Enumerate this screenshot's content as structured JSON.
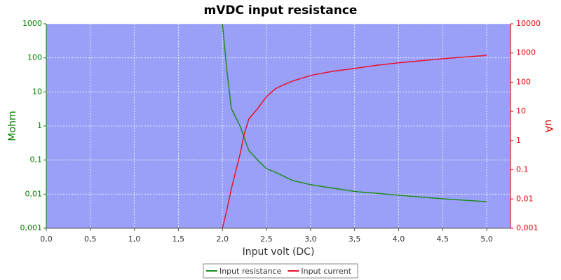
{
  "chart_data": {
    "type": "line",
    "title": "mVDC input resistance",
    "xlabel": "Input volt (DC)",
    "ylabel": "Mohm",
    "y2label": "uA",
    "x": [
      2.0,
      2.05,
      2.1,
      2.2,
      2.25,
      2.3,
      2.4,
      2.5,
      2.6,
      2.7,
      2.8,
      3.0,
      3.25,
      3.5,
      3.75,
      4.0,
      4.5,
      5.0
    ],
    "series": [
      {
        "name": "Input resistance",
        "color": "#1e8c1e",
        "axis": "y",
        "values": [
          1000,
          44,
          3.3,
          1.0,
          0.43,
          0.19,
          0.1,
          0.056,
          0.044,
          0.033,
          0.025,
          0.019,
          0.015,
          0.012,
          0.0106,
          0.0093,
          0.0073,
          0.006
        ]
      },
      {
        "name": "Input current",
        "color": "#e8102a",
        "axis": "y2",
        "values": [
          0.001,
          0.0042,
          0.022,
          0.35,
          1.8,
          5.5,
          12.6,
          32,
          60,
          83,
          110,
          170,
          235,
          295,
          380,
          460,
          635,
          830
        ]
      }
    ],
    "xlim": [
      0,
      5.27
    ],
    "xticks": [
      {
        "value": 0,
        "label": "0,0"
      },
      {
        "value": 0.5,
        "label": "0,5"
      },
      {
        "value": 1,
        "label": "1,0"
      },
      {
        "value": 1.5,
        "label": "1,5"
      },
      {
        "value": 2,
        "label": "2,0"
      },
      {
        "value": 2.5,
        "label": "2,5"
      },
      {
        "value": 3,
        "label": "3,0"
      },
      {
        "value": 3.5,
        "label": "3,5"
      },
      {
        "value": 4,
        "label": "4,0"
      },
      {
        "value": 4.5,
        "label": "4,5"
      },
      {
        "value": 5,
        "label": "5,0"
      }
    ],
    "ylim": [
      0.001,
      1000
    ],
    "yticks": [
      {
        "value": 0.001,
        "label": "0,001"
      },
      {
        "value": 0.01,
        "label": "0,01"
      },
      {
        "value": 0.1,
        "label": "0,1"
      },
      1,
      10,
      100,
      1000
    ],
    "y2lim": [
      0.001,
      10000
    ],
    "y2ticks": [
      {
        "value": 0.001,
        "label": "0,001"
      },
      {
        "value": 0.01,
        "label": "0,01"
      },
      {
        "value": 0.1,
        "label": "0,1"
      },
      1,
      10,
      100,
      1000,
      10000
    ],
    "log_y": true,
    "log_y2": true,
    "grid": true,
    "legend": "bottom",
    "ycolor": "#008000",
    "y2color": "#e00000",
    "plot_background": "#9aa0f8"
  }
}
